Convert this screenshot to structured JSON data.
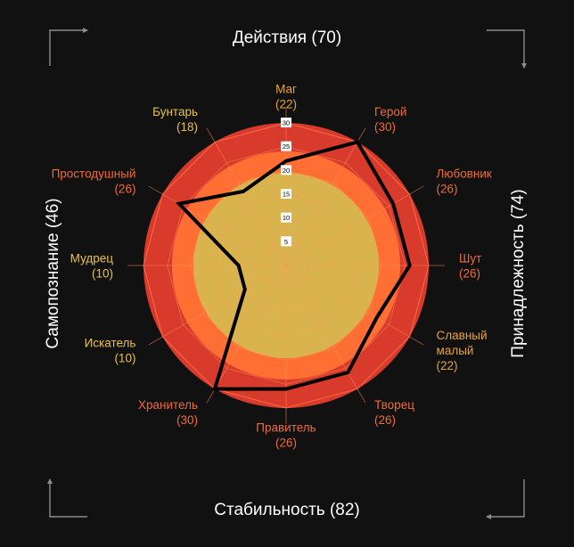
{
  "chart_data": {
    "type": "radar",
    "max": 30,
    "ticks": [
      5,
      10,
      15,
      20,
      25,
      30
    ],
    "categories": [
      {
        "name": "Маг",
        "value": "(22)",
        "score": 22,
        "color": "#e8a33a"
      },
      {
        "name": "Герой",
        "value": "(30)",
        "score": 30,
        "color": "#f06a3a"
      },
      {
        "name": "Любовник",
        "value": "(26)",
        "score": 26,
        "color": "#f06a3a"
      },
      {
        "name": "Шут",
        "value": "(26)",
        "score": 26,
        "color": "#f06a3a"
      },
      {
        "name": "Славный малый",
        "value": "(22)",
        "score": 22,
        "color": "#e8a33a"
      },
      {
        "name": "Творец",
        "value": "(26)",
        "score": 26,
        "color": "#f06a3a"
      },
      {
        "name": "Правитель",
        "value": "(26)",
        "score": 26,
        "color": "#f06a3a"
      },
      {
        "name": "Хранитель",
        "value": "(30)",
        "score": 30,
        "color": "#f06a3a"
      },
      {
        "name": "Искатель",
        "value": "(10)",
        "score": 10,
        "color": "#e8c14a"
      },
      {
        "name": "Мудрец",
        "value": "(10)",
        "score": 10,
        "color": "#e8c14a"
      },
      {
        "name": "Простодушный",
        "value": "(26)",
        "score": 26,
        "color": "#f06a3a"
      },
      {
        "name": "Бунтарь",
        "value": "(18)",
        "score": 18,
        "color": "#e8c14a"
      }
    ],
    "bands": [
      {
        "to": 30,
        "color": "#d83a2c"
      },
      {
        "to": 24,
        "color": "#ff6f33"
      },
      {
        "to": 19.5,
        "color": "#d9b44e"
      }
    ]
  },
  "sides": {
    "top": "Действия (70)",
    "bottom": "Стабильность (82)",
    "left": "Самопознание (46)",
    "right": "Принадлежность (74)"
  },
  "colors": {
    "background": "#111111",
    "outline": "#000000",
    "corner": "#8c8c8c"
  }
}
